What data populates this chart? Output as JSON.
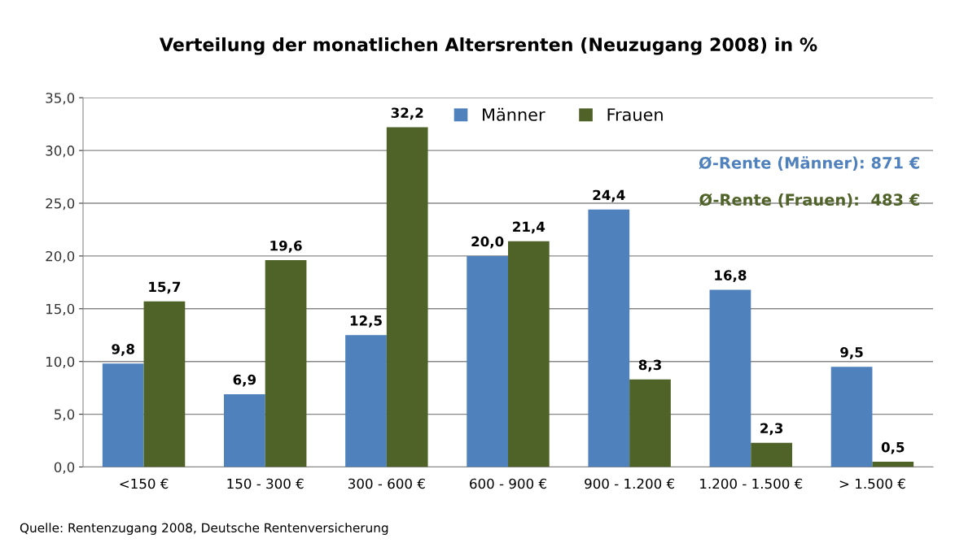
{
  "chart_data": {
    "type": "bar",
    "title": "Verteilung der monatlichen Altersrenten (Neuzugang 2008) in %",
    "categories": [
      "<150 €",
      "150 - 300 €",
      "300 - 600 €",
      "600 - 900 €",
      "900 - 1.200 €",
      "1.200 - 1.500 €",
      "> 1.500 €"
    ],
    "series": [
      {
        "name": "Männer",
        "color": "#4f81bd",
        "values": [
          9.8,
          6.9,
          12.5,
          20.0,
          24.4,
          16.8,
          9.5
        ],
        "value_labels": [
          "9,8",
          "6,9",
          "12,5",
          "20,0",
          "24,4",
          "16,8",
          "9,5"
        ]
      },
      {
        "name": "Frauen",
        "color": "#4f6228",
        "values": [
          15.7,
          19.6,
          32.2,
          21.4,
          8.3,
          2.3,
          0.5
        ],
        "value_labels": [
          "15,7",
          "19,6",
          "32,2",
          "21,4",
          "8,3",
          "2,3",
          "0,5"
        ]
      }
    ],
    "ylim": [
      0,
      35
    ],
    "yticks": [
      {
        "value": 0,
        "label": "0,0"
      },
      {
        "value": 5,
        "label": "5,0"
      },
      {
        "value": 10,
        "label": "10,0"
      },
      {
        "value": 15,
        "label": "15,0"
      },
      {
        "value": 20,
        "label": "20,0"
      },
      {
        "value": 25,
        "label": "25,0"
      },
      {
        "value": 30,
        "label": "30,0"
      },
      {
        "value": 35,
        "label": "35,0"
      }
    ],
    "grid": "y",
    "legend": "top",
    "annotations": [
      "Ø-Rente (Männer): 871 €",
      "Ø-Rente (Frauen):  483 €",
      "Quelle: Rentenzugang 2008, Deutsche Rentenversicherung"
    ]
  }
}
